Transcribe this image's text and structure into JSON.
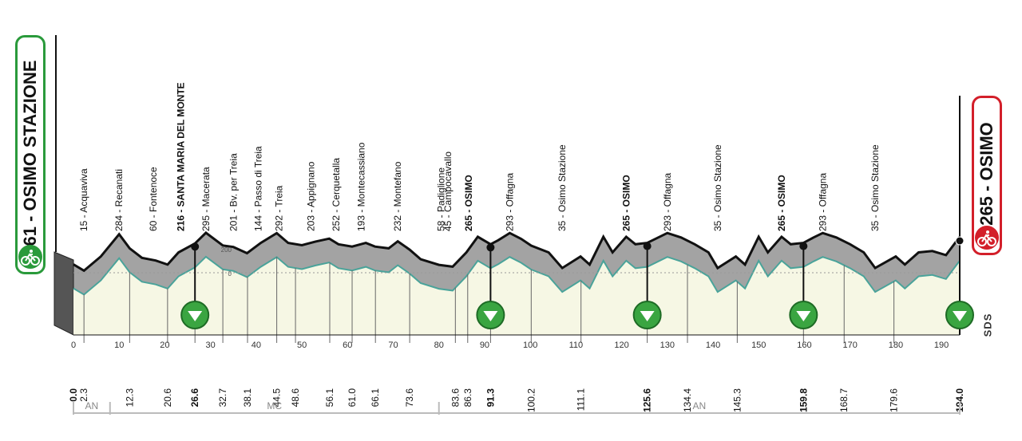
{
  "start_badge": {
    "text": "61 - OSIMO STAZIONE",
    "icon": "cyclist-icon",
    "color": "#2a9a3b"
  },
  "finish_badge": {
    "text": "265 - OSIMO",
    "icon": "cyclist-icon",
    "color": "#d31f2a"
  },
  "brand": "SDS",
  "chart_data": {
    "type": "area",
    "xlim": [
      0,
      194
    ],
    "x_ticks": [
      0,
      10,
      20,
      30,
      40,
      50,
      60,
      70,
      80,
      90,
      100,
      110,
      120,
      130,
      140,
      150,
      160,
      170,
      180,
      190
    ],
    "y_ticks": [
      200,
      0
    ],
    "kms": [
      0.0,
      2.3,
      12.3,
      20.6,
      26.6,
      32.7,
      38.1,
      44.5,
      48.6,
      56.1,
      61.0,
      66.1,
      73.6,
      83.6,
      86.3,
      91.3,
      100.2,
      111.1,
      125.6,
      134.4,
      145.3,
      159.8,
      168.7,
      179.6,
      194.0
    ],
    "bold_kms": [
      0.0,
      26.6,
      91.3,
      125.6,
      159.8,
      194.0
    ],
    "sprint_kms": [
      26.6,
      91.3,
      125.6,
      159.8,
      194.0
    ],
    "labels": [
      {
        "km": 2.3,
        "text": "15 - Acquaviva",
        "bold": false
      },
      {
        "km": 10.0,
        "text": "284 - Recanati",
        "bold": false
      },
      {
        "km": 17.5,
        "text": "60 - Fontenoce",
        "bold": false
      },
      {
        "km": 23.5,
        "text": "216 - SANTA MARIA DEL MONTE",
        "bold": true
      },
      {
        "km": 29.0,
        "text": "295 - Macerata",
        "bold": false
      },
      {
        "km": 35.0,
        "text": "201 - Bv. per Treia",
        "bold": false
      },
      {
        "km": 40.5,
        "text": "144 - Passo di Treia",
        "bold": false
      },
      {
        "km": 45.0,
        "text": "292 - Treia",
        "bold": false
      },
      {
        "km": 52.0,
        "text": "203 - Appignano",
        "bold": false
      },
      {
        "km": 57.5,
        "text": "252 - Cerquetalla",
        "bold": false
      },
      {
        "km": 63.0,
        "text": "193 - Montecassiano",
        "bold": false
      },
      {
        "km": 71.0,
        "text": "232 - Montefano",
        "bold": false
      },
      {
        "km": 80.5,
        "text": "58 - Padiglione",
        "bold": false
      },
      {
        "km": 82.0,
        "text": "45 - Campocavallo",
        "bold": false
      },
      {
        "km": 86.5,
        "text": "265 - OSIMO",
        "bold": true
      },
      {
        "km": 95.5,
        "text": "293 - Offagna",
        "bold": false
      },
      {
        "km": 107.0,
        "text": "35 - Osimo Stazione",
        "bold": false
      },
      {
        "km": 121.0,
        "text": "265 - OSIMO",
        "bold": true
      },
      {
        "km": 130.0,
        "text": "293 - Offagna",
        "bold": false
      },
      {
        "km": 141.0,
        "text": "35 - Osimo Stazione",
        "bold": false
      },
      {
        "km": 155.0,
        "text": "265 - OSIMO",
        "bold": true
      },
      {
        "km": 164.0,
        "text": "293 - Offagna",
        "bold": false
      },
      {
        "km": 175.5,
        "text": "35 - Osimo Stazione",
        "bold": false
      }
    ],
    "provinces": [
      {
        "name": "AN",
        "start": 0,
        "end": 8
      },
      {
        "name": "MC",
        "start": 8,
        "end": 80
      },
      {
        "name": "AN",
        "start": 80,
        "end": 194
      }
    ],
    "profile": [
      [
        0,
        61
      ],
      [
        2.3,
        15
      ],
      [
        6,
        120
      ],
      [
        10,
        284
      ],
      [
        12.3,
        180
      ],
      [
        15,
        110
      ],
      [
        18,
        90
      ],
      [
        20.6,
        60
      ],
      [
        23,
        150
      ],
      [
        26.6,
        216
      ],
      [
        29,
        295
      ],
      [
        32.7,
        201
      ],
      [
        35,
        190
      ],
      [
        38,
        144
      ],
      [
        41,
        220
      ],
      [
        44.5,
        292
      ],
      [
        47,
        220
      ],
      [
        50,
        203
      ],
      [
        53,
        230
      ],
      [
        56,
        252
      ],
      [
        58,
        210
      ],
      [
        61,
        193
      ],
      [
        64,
        220
      ],
      [
        66,
        193
      ],
      [
        69,
        180
      ],
      [
        71,
        232
      ],
      [
        73.6,
        170
      ],
      [
        76,
        100
      ],
      [
        80,
        58
      ],
      [
        83,
        45
      ],
      [
        86,
        150
      ],
      [
        88.5,
        265
      ],
      [
        91.3,
        210
      ],
      [
        93,
        240
      ],
      [
        95.5,
        293
      ],
      [
        98,
        250
      ],
      [
        100.2,
        200
      ],
      [
        104,
        150
      ],
      [
        107,
        35
      ],
      [
        111,
        120
      ],
      [
        113,
        60
      ],
      [
        116,
        265
      ],
      [
        118,
        150
      ],
      [
        121,
        265
      ],
      [
        123,
        210
      ],
      [
        125.6,
        220
      ],
      [
        128,
        260
      ],
      [
        130,
        293
      ],
      [
        133,
        260
      ],
      [
        136,
        210
      ],
      [
        139,
        150
      ],
      [
        141,
        35
      ],
      [
        145,
        120
      ],
      [
        147,
        60
      ],
      [
        150,
        265
      ],
      [
        152,
        150
      ],
      [
        155,
        265
      ],
      [
        157,
        210
      ],
      [
        159.8,
        220
      ],
      [
        162,
        260
      ],
      [
        164,
        293
      ],
      [
        167,
        260
      ],
      [
        170,
        210
      ],
      [
        173,
        150
      ],
      [
        175.5,
        35
      ],
      [
        180,
        120
      ],
      [
        182,
        60
      ],
      [
        185,
        150
      ],
      [
        188,
        160
      ],
      [
        191,
        130
      ],
      [
        194,
        265
      ]
    ]
  }
}
